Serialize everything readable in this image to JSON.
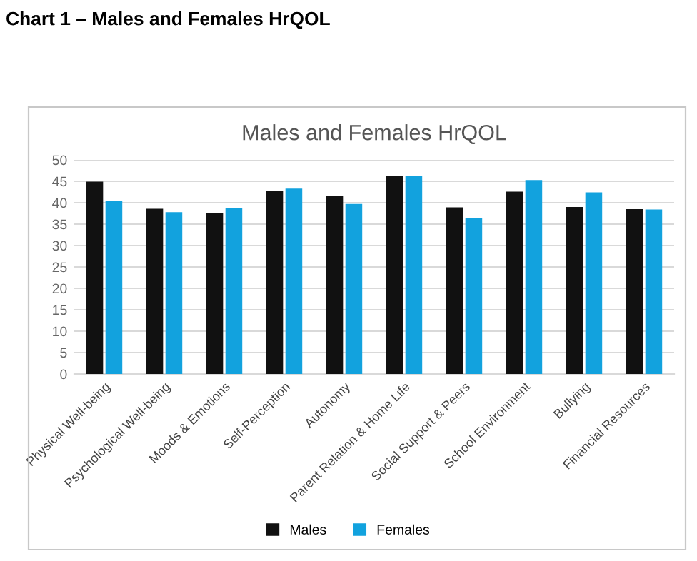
{
  "chart_data": {
    "type": "bar",
    "title": "Males and Females HrQOL",
    "annotations": [
      "Chart 1 – Males and Females HrQOL"
    ],
    "categories": [
      "Physical Well-being",
      "Psychological Well-being",
      "Moods & Emotions",
      "Self-Perception",
      "Autonomy",
      "Parent Relation & Home Life",
      "Social Support & Peers",
      "School Environment",
      "Bullying",
      "Financial Resources"
    ],
    "series": [
      {
        "name": "Males",
        "color": "#111111",
        "values": [
          44.9,
          38.6,
          37.6,
          42.8,
          41.5,
          46.2,
          38.9,
          42.6,
          39.0,
          38.5
        ]
      },
      {
        "name": "Females",
        "color": "#12a2de",
        "values": [
          40.5,
          37.8,
          38.7,
          43.3,
          39.7,
          46.3,
          36.5,
          45.3,
          42.4,
          38.4
        ]
      }
    ],
    "ylim": [
      0,
      50
    ],
    "yticks": [
      0,
      5,
      10,
      15,
      20,
      25,
      30,
      35,
      40,
      45,
      50
    ],
    "grid": "y",
    "legend": "bottom"
  }
}
